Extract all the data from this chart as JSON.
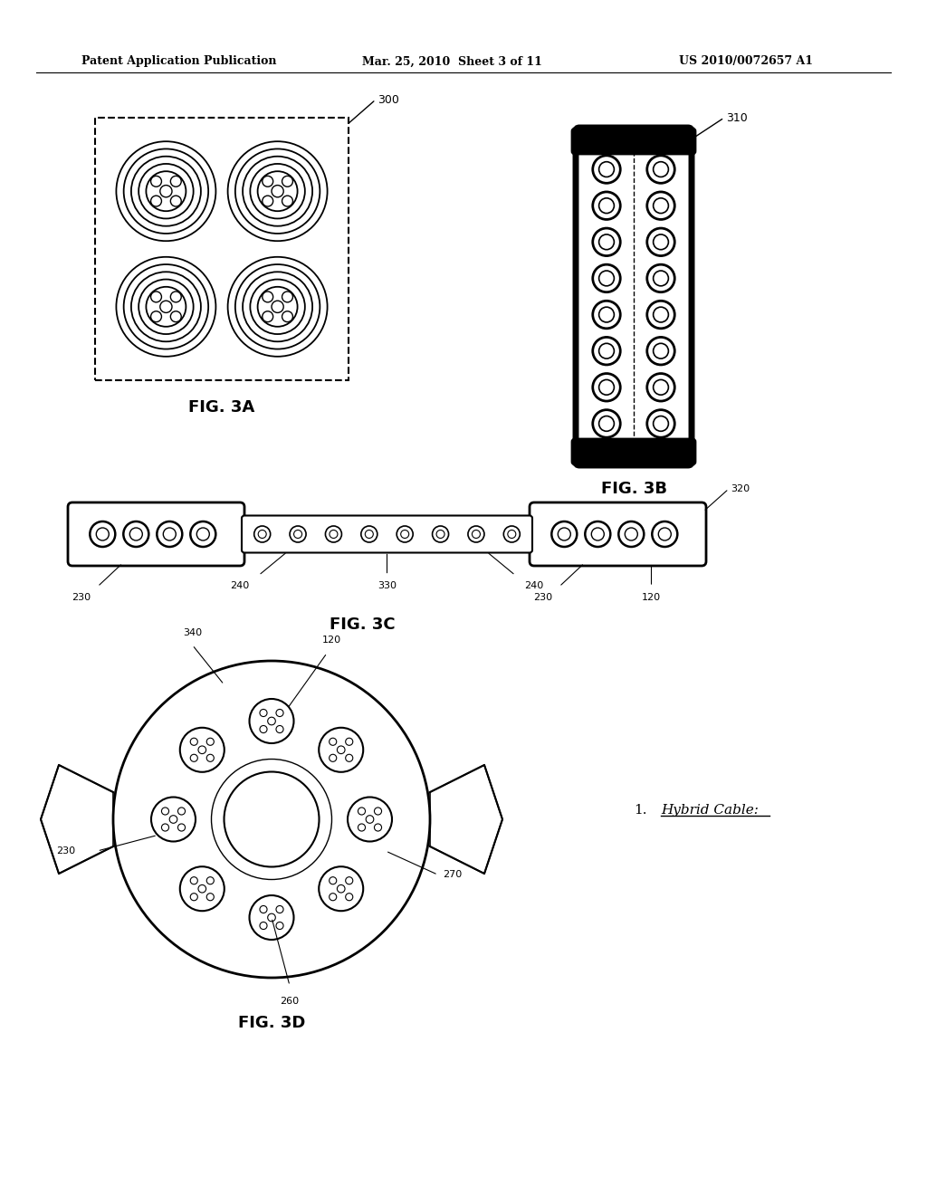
{
  "bg_color": "#ffffff",
  "header_left": "Patent Application Publication",
  "header_mid": "Mar. 25, 2010  Sheet 3 of 11",
  "header_right": "US 2010/0072657 A1",
  "fig3a_label": "FIG. 3A",
  "fig3b_label": "FIG. 3B",
  "fig3c_label": "FIG. 3C",
  "fig3d_label": "FIG. 3D",
  "ref_300": "300",
  "ref_310": "310",
  "ref_320": "320",
  "ref_330": "330",
  "ref_240a": "240",
  "ref_240b": "240",
  "ref_230a": "230",
  "ref_230b": "230",
  "ref_230c": "230",
  "ref_120a": "120",
  "ref_120b": "120",
  "ref_340": "340",
  "ref_270": "270",
  "ref_260": "260",
  "ref_230d": "230",
  "note_1": "1.",
  "note_text": "Hybrid Cable:"
}
